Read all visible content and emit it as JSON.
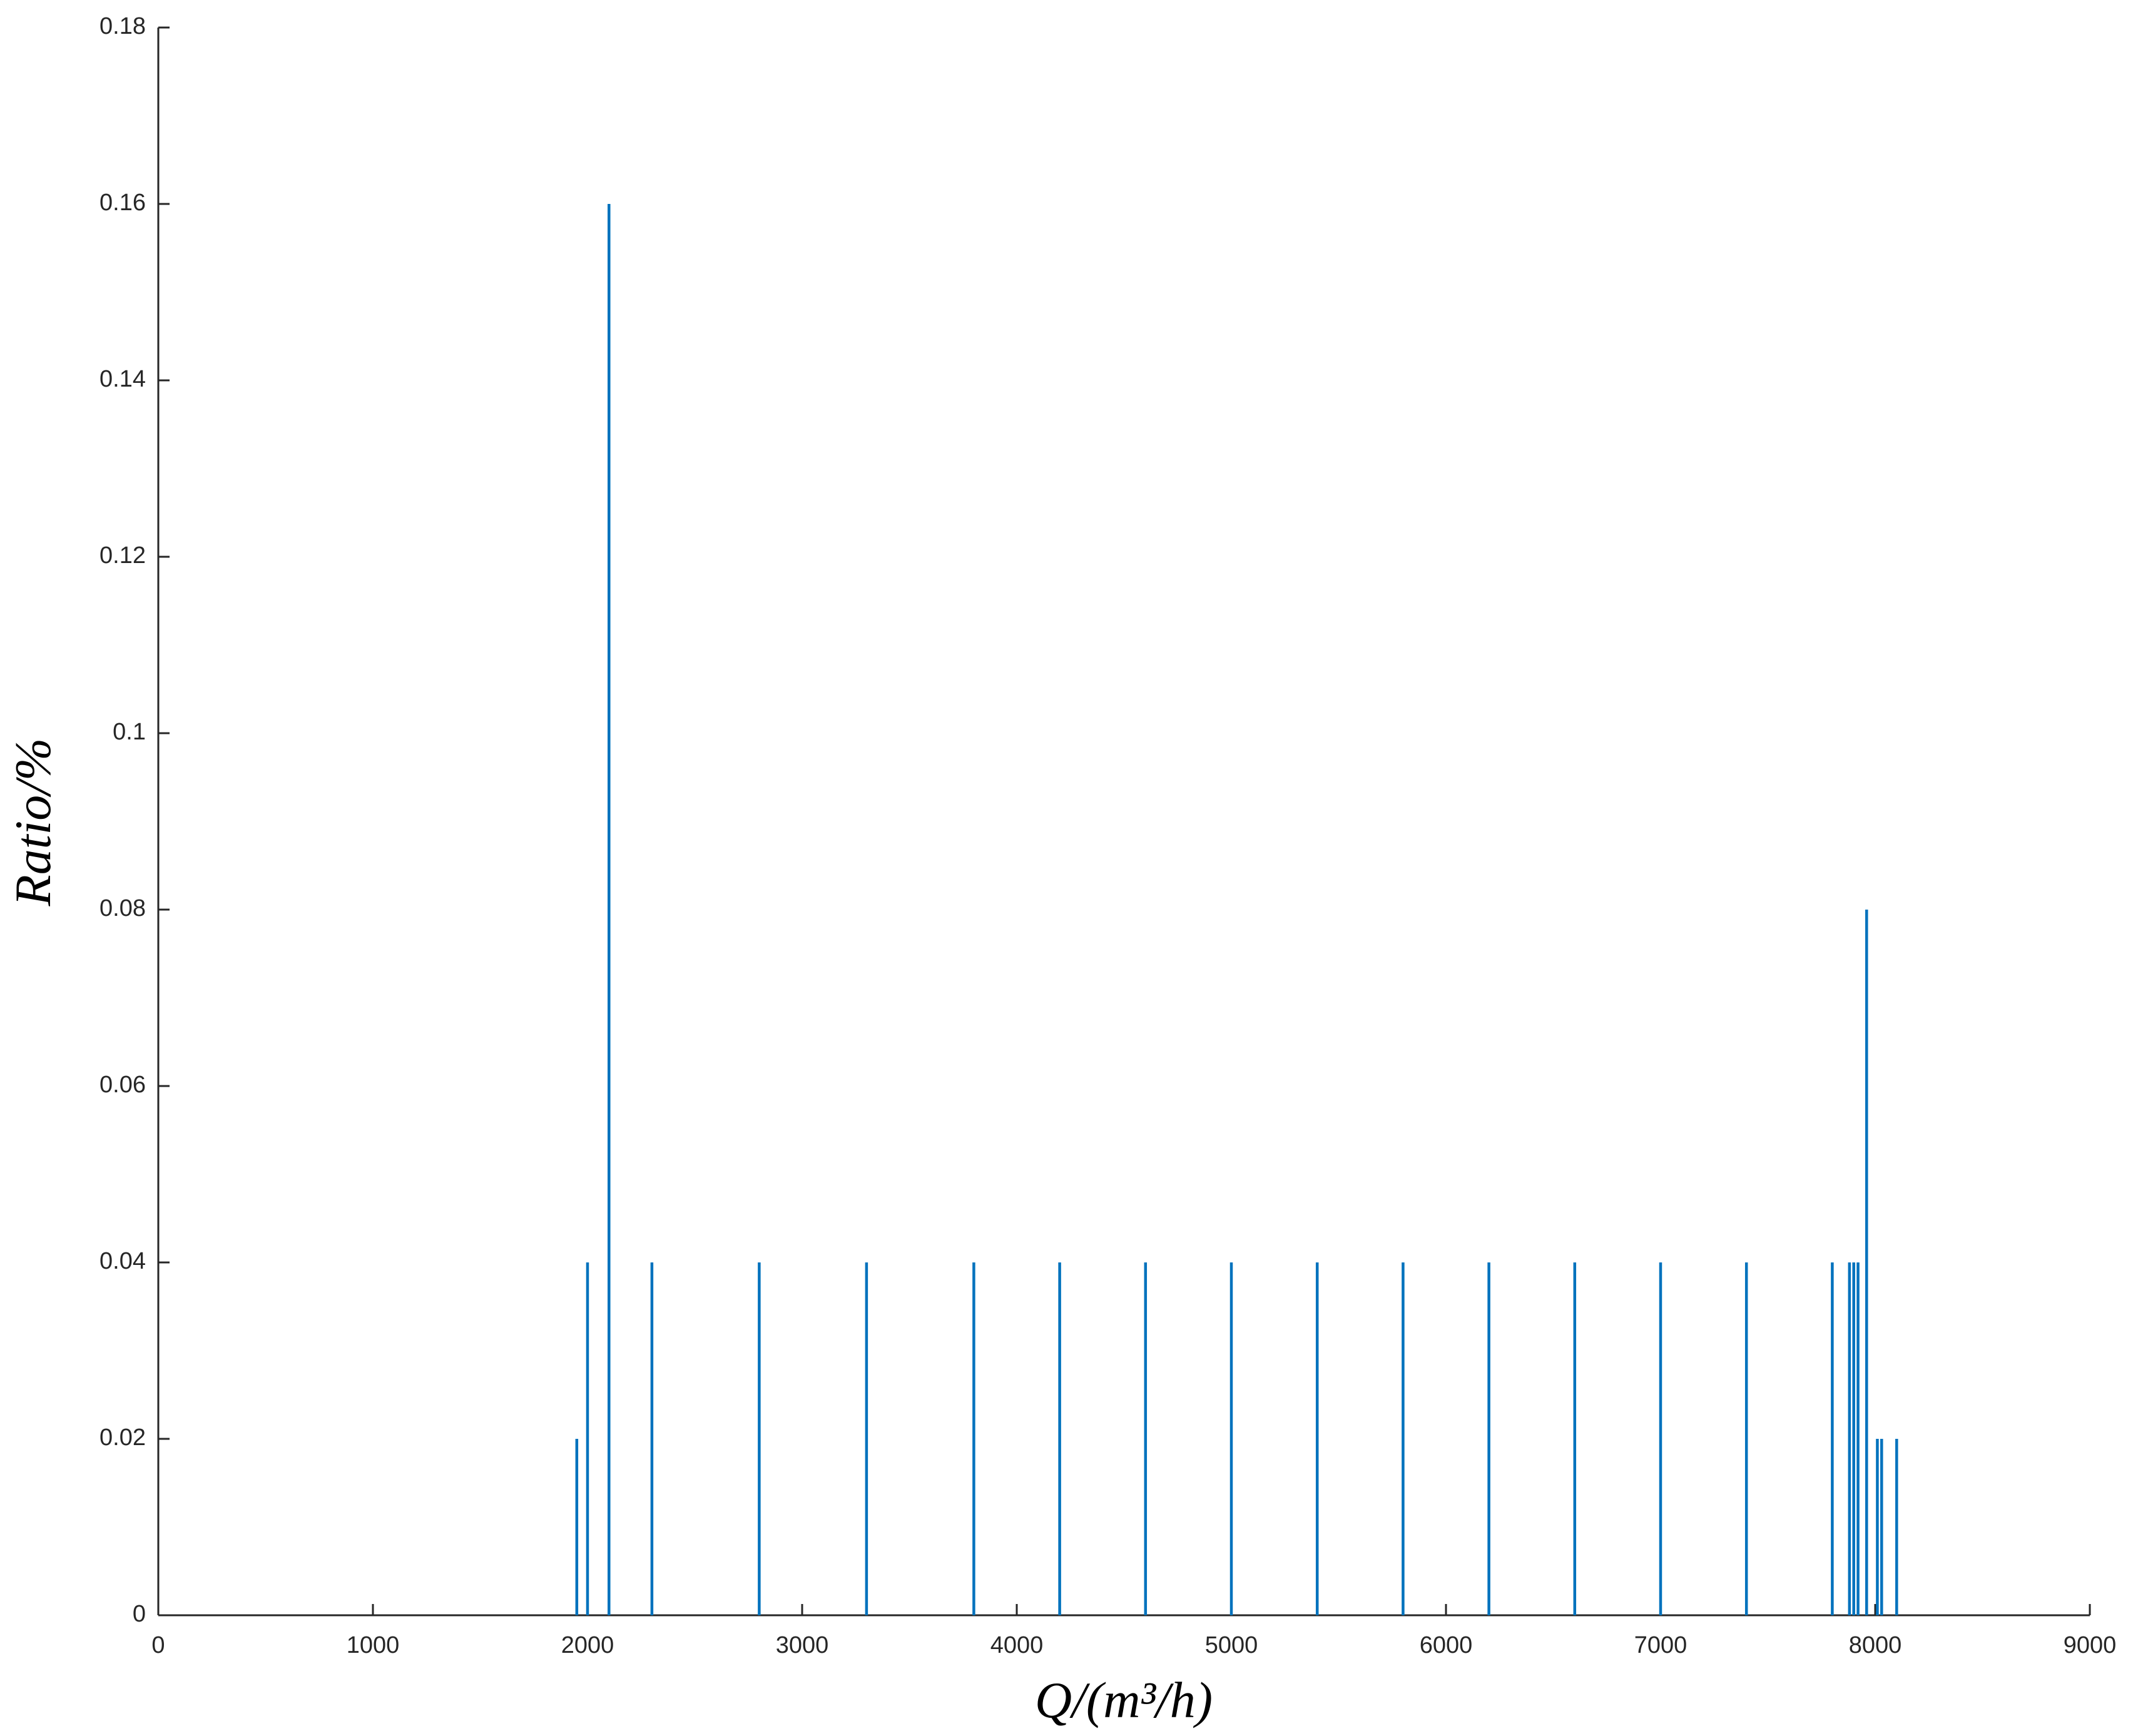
{
  "chart_data": {
    "type": "stem",
    "x_label": "Q/(m³/h)",
    "y_label": "Ratio/%",
    "x": [
      1950,
      2000,
      2100,
      2300,
      2800,
      3300,
      3800,
      4200,
      4600,
      5000,
      5400,
      5800,
      6200,
      6600,
      7000,
      7400,
      7800,
      7880,
      7900,
      7920,
      7960,
      8010,
      8030,
      8100
    ],
    "values": [
      0.02,
      0.04,
      0.16,
      0.04,
      0.04,
      0.04,
      0.04,
      0.04,
      0.04,
      0.04,
      0.04,
      0.04,
      0.04,
      0.04,
      0.04,
      0.04,
      0.04,
      0.04,
      0.04,
      0.04,
      0.08,
      0.02,
      0.02,
      0.02
    ],
    "color": "#0072bd",
    "xlim": [
      0,
      9000
    ],
    "xticks": [
      0,
      1000,
      2000,
      3000,
      4000,
      5000,
      6000,
      7000,
      8000,
      9000
    ],
    "ylim": [
      0,
      0.18
    ],
    "yticks": [
      0,
      0.02,
      0.04,
      0.06,
      0.08,
      0.1,
      0.12,
      0.14,
      0.16,
      0.18
    ]
  }
}
